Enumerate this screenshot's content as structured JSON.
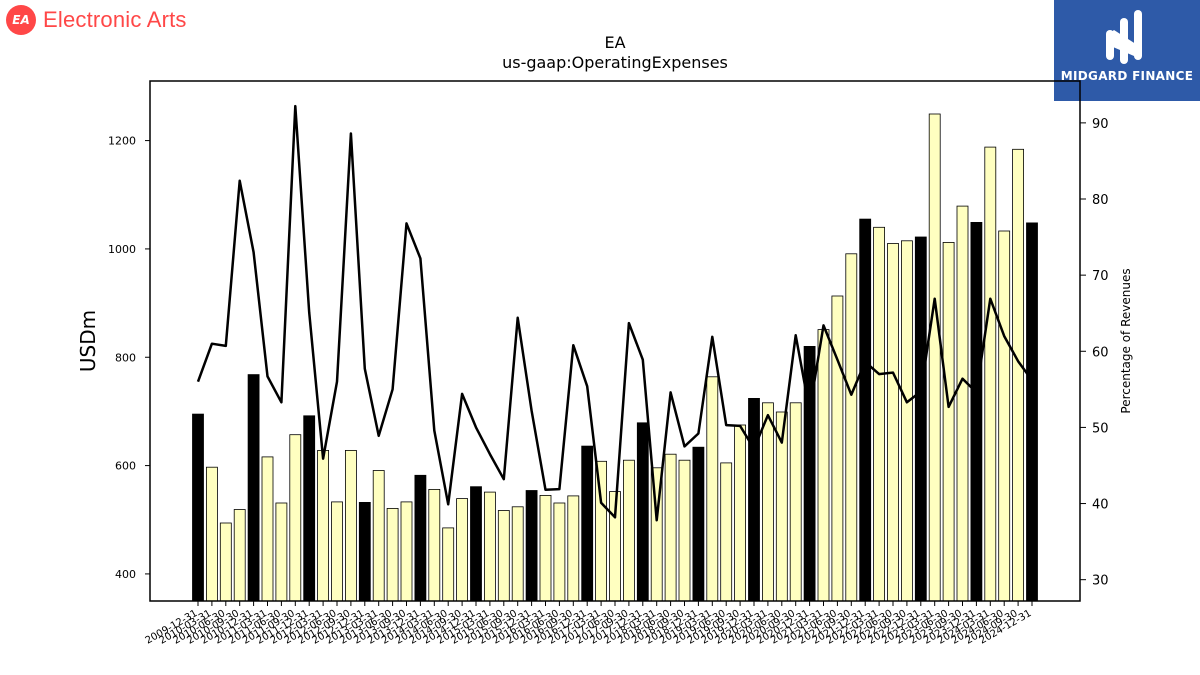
{
  "brand": {
    "name": "Electronic Arts",
    "badge_text": "EA",
    "color": "#ff4747"
  },
  "sponsor": {
    "name": "MIDGARD FINANCE",
    "color": "#2e5aa8"
  },
  "chart_data": {
    "type": "bar",
    "title": "EA",
    "subtitle": "us-gaap:OperatingExpenses",
    "ylabel": "USDm",
    "y2label": "Percentage of Revenues",
    "ylim": [
      350,
      1310
    ],
    "y2lim": [
      27.2,
      95.5
    ],
    "yticks": [
      400,
      600,
      800,
      1000,
      1200
    ],
    "y2ticks": [
      30,
      40,
      50,
      60,
      70,
      80,
      90
    ],
    "categories": [
      "2009-12-31",
      "2010-03-31",
      "2010-06-30",
      "2010-09-30",
      "2010-12-31",
      "2011-03-31",
      "2011-06-30",
      "2011-09-30",
      "2011-12-31",
      "2012-03-31",
      "2012-06-30",
      "2012-09-30",
      "2012-12-31",
      "2013-03-31",
      "2013-06-30",
      "2013-09-30",
      "2013-12-31",
      "2014-03-31",
      "2014-06-30",
      "2014-09-30",
      "2014-12-31",
      "2015-03-31",
      "2015-06-30",
      "2015-09-30",
      "2015-12-31",
      "2016-03-31",
      "2016-06-30",
      "2016-09-30",
      "2016-12-31",
      "2017-03-31",
      "2017-06-30",
      "2017-09-30",
      "2017-12-31",
      "2018-03-31",
      "2018-06-30",
      "2018-09-30",
      "2018-12-31",
      "2019-03-31",
      "2019-06-30",
      "2019-09-30",
      "2019-12-31",
      "2020-03-31",
      "2020-06-30",
      "2020-09-30",
      "2020-12-31",
      "2021-03-31",
      "2021-06-30",
      "2021-09-30",
      "2021-12-31",
      "2022-03-31",
      "2022-06-30",
      "2022-09-30",
      "2022-12-31",
      "2023-03-31",
      "2023-06-30",
      "2023-09-30",
      "2023-12-31",
      "2024-03-31",
      "2024-06-30",
      "2024-09-30",
      "2024-12-31"
    ],
    "series": [
      {
        "role": "bars",
        "highlight_color": "#000000",
        "base_color": "#ffffc0",
        "highlight_indices": [
          0,
          4,
          8,
          12,
          16,
          20,
          24,
          28,
          32,
          36,
          40,
          44,
          48,
          52,
          56,
          60
        ],
        "values": [
          695,
          597,
          494,
          519,
          768,
          616,
          531,
          657,
          692,
          628,
          533,
          628,
          532,
          591,
          521,
          533,
          582,
          556,
          485,
          539,
          561,
          551,
          517,
          524,
          554,
          545,
          531,
          544,
          636,
          608,
          552,
          610,
          679,
          596,
          621,
          610,
          634,
          764,
          605,
          675,
          724,
          716,
          699,
          716,
          820,
          851,
          913,
          991,
          1055,
          1040,
          1010,
          1015,
          1022,
          1249,
          1012,
          1079,
          1049,
          1188,
          1033,
          1184,
          1048
        ]
      },
      {
        "role": "line",
        "axis": "right",
        "color": "#000000",
        "values": [
          56,
          61,
          60.7,
          82.4,
          73,
          56.7,
          53.3,
          92.2,
          65.1,
          45.9,
          56,
          88.6,
          57.7,
          48.9,
          55,
          76.8,
          72.2,
          49.6,
          39.9,
          54.4,
          50,
          46.5,
          43.2,
          64.4,
          52.2,
          41.8,
          41.9,
          60.8,
          55.4,
          40.1,
          38.2,
          63.7,
          58.9,
          37.8,
          54.6,
          47.5,
          49.2,
          61.9,
          50.3,
          50.2,
          47.2,
          51.6,
          48,
          62.1,
          52.2,
          63.4,
          58.9,
          54.3,
          58.6,
          57,
          57.2,
          53.3,
          54.7,
          66.9,
          52.7,
          56.4,
          54.6,
          66.9,
          62,
          58.7,
          56.2
        ]
      }
    ]
  }
}
